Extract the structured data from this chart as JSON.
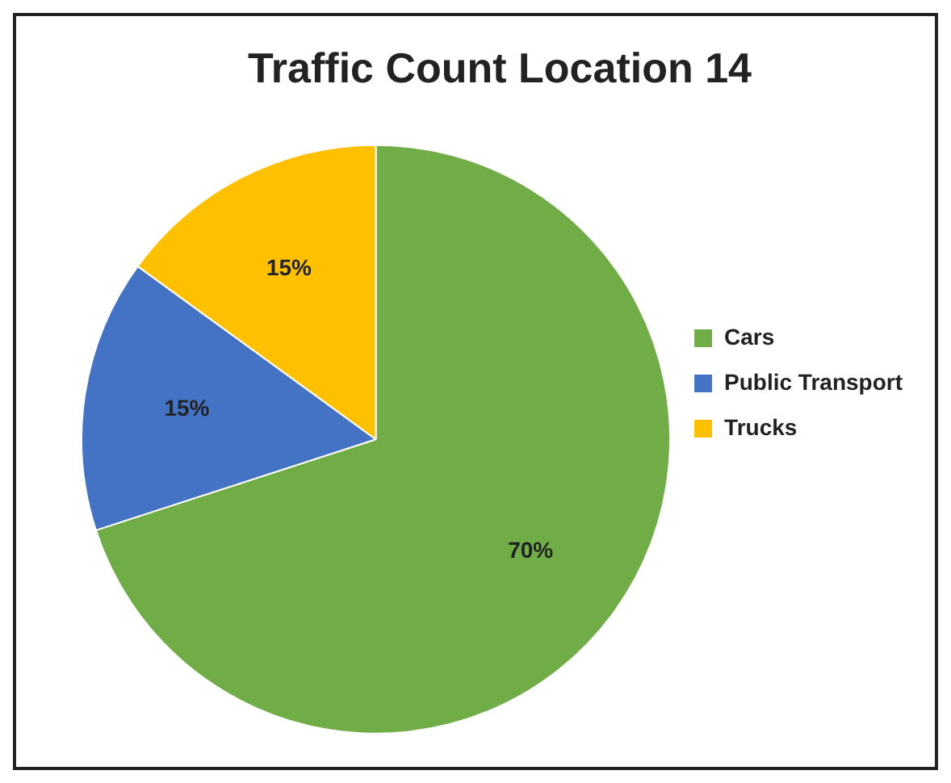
{
  "chart_data": {
    "type": "pie",
    "title": "Traffic Count Location 14",
    "categories": [
      "Cars",
      "Public Transport",
      "Trucks"
    ],
    "values": [
      70,
      15,
      15
    ],
    "colors": [
      "#70ad47",
      "#4472c4",
      "#ffc000"
    ],
    "value_labels": [
      "70%",
      "15%",
      "15%"
    ],
    "legend": "right"
  }
}
